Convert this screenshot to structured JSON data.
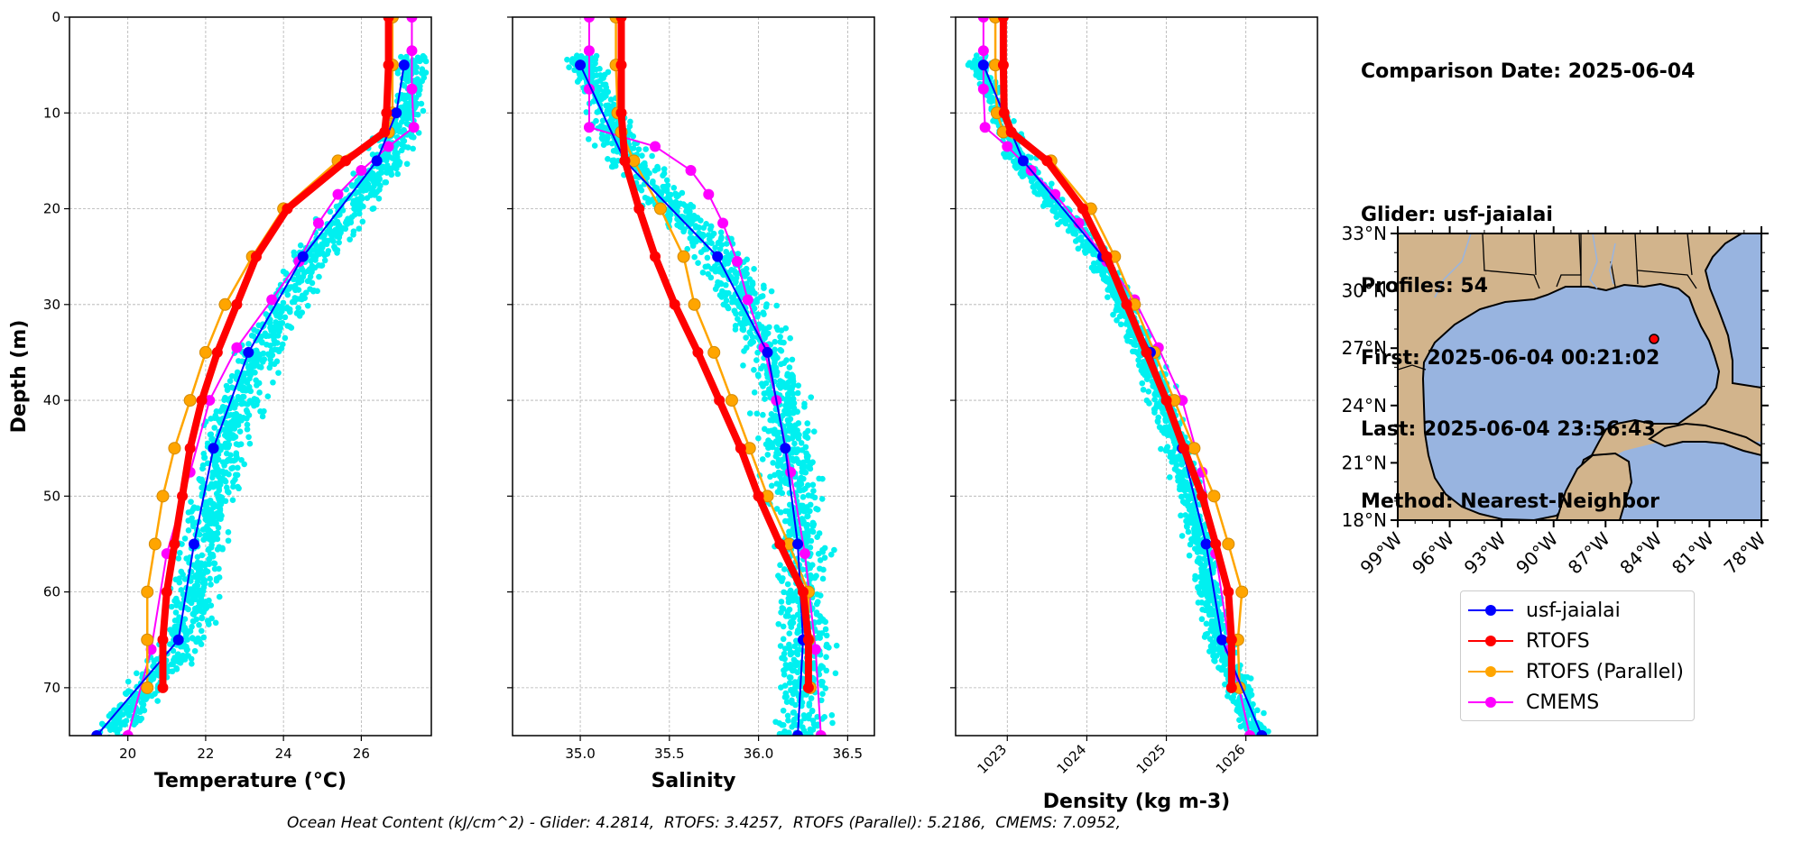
{
  "info": {
    "comparison_date": "Comparison Date: 2025-06-04",
    "glider": "Glider: usf-jaialai",
    "profiles": "Profiles: 54",
    "first": "First: 2025-06-04 00:21:02",
    "last": "Last: 2025-06-04 23:56:43",
    "method": "Method: Nearest-Neighbor"
  },
  "footnote": "Ocean Heat Content (kJ/cm^2) - Glider: 4.2814,  RTOFS: 3.4257,  RTOFS (Parallel): 5.2186,  CMEMS: 7.0952,",
  "legend": [
    {
      "label": "usf-jaialai",
      "color": "#0000ff"
    },
    {
      "label": "RTOFS",
      "color": "#ff0000"
    },
    {
      "label": "RTOFS (Parallel)",
      "color": "#ffa500"
    },
    {
      "label": "CMEMS",
      "color": "#ff00ff"
    }
  ],
  "colors": {
    "glider": "#0000ff",
    "rtofs": "#ff0000",
    "rtofs_parallel": "#ffa500",
    "cmems": "#ff00ff",
    "scatter": "#00f0f0",
    "land": "#d2b48c",
    "water": "#98b4e0"
  },
  "chart_data": [
    {
      "type": "line",
      "xlabel": "Temperature (°C)",
      "ylabel": "Depth (m)",
      "xlim": [
        18.5,
        27.8
      ],
      "ylim": [
        75,
        0
      ],
      "xticks": [
        20,
        22,
        24,
        26
      ],
      "yticks": [
        0,
        10,
        20,
        30,
        40,
        50,
        60,
        70
      ],
      "grid": true,
      "series": [
        {
          "name": "usf-jaialai",
          "depth": [
            5,
            10,
            15,
            25,
            35,
            45,
            55,
            65,
            75
          ],
          "values": [
            27.1,
            26.9,
            26.4,
            24.5,
            23.1,
            22.2,
            21.7,
            21.3,
            19.2
          ]
        },
        {
          "name": "RTOFS",
          "depth": [
            0,
            5,
            10,
            12,
            15,
            20,
            25,
            30,
            35,
            40,
            45,
            50,
            55,
            60,
            65,
            70
          ],
          "values": [
            26.7,
            26.7,
            26.65,
            26.6,
            25.6,
            24.1,
            23.3,
            22.8,
            22.3,
            21.9,
            21.6,
            21.4,
            21.2,
            21.0,
            20.9,
            20.9
          ]
        },
        {
          "name": "RTOFS (Parallel)",
          "depth": [
            0,
            5,
            10,
            12,
            15,
            20,
            25,
            30,
            35,
            40,
            45,
            50,
            55,
            60,
            65,
            70
          ],
          "values": [
            26.8,
            26.8,
            26.8,
            26.7,
            25.4,
            24.0,
            23.2,
            22.5,
            22.0,
            21.6,
            21.2,
            20.9,
            20.7,
            20.5,
            20.5,
            20.5
          ]
        },
        {
          "name": "CMEMS",
          "depth": [
            0,
            3.5,
            7.5,
            11.5,
            13.5,
            16,
            18.5,
            21.5,
            25.5,
            29.5,
            34.5,
            40,
            47.5,
            56,
            66,
            75
          ],
          "values": [
            27.3,
            27.3,
            27.3,
            27.35,
            26.7,
            26.0,
            25.4,
            24.9,
            24.4,
            23.7,
            22.8,
            22.1,
            21.6,
            21.0,
            20.6,
            20.0
          ]
        }
      ]
    },
    {
      "type": "line",
      "xlabel": "Salinity",
      "ylim": [
        75,
        0
      ],
      "xlim": [
        34.62,
        36.65
      ],
      "xticks": [
        35.0,
        35.5,
        36.0,
        36.5
      ],
      "grid": true,
      "series": [
        {
          "name": "usf-jaialai",
          "depth": [
            5,
            15,
            25,
            35,
            45,
            55,
            65,
            75
          ],
          "values": [
            35.0,
            35.25,
            35.77,
            36.05,
            36.15,
            36.22,
            36.25,
            36.22
          ]
        },
        {
          "name": "RTOFS",
          "depth": [
            0,
            5,
            10,
            15,
            20,
            25,
            30,
            35,
            40,
            45,
            50,
            55,
            60,
            65,
            70
          ],
          "values": [
            35.23,
            35.23,
            35.23,
            35.25,
            35.33,
            35.42,
            35.53,
            35.66,
            35.78,
            35.9,
            36.0,
            36.12,
            36.25,
            36.28,
            36.28
          ]
        },
        {
          "name": "RTOFS (Parallel)",
          "depth": [
            0,
            5,
            10,
            12,
            15,
            20,
            25,
            30,
            35,
            40,
            45,
            50,
            55,
            60,
            65,
            70
          ],
          "values": [
            35.2,
            35.2,
            35.21,
            35.23,
            35.3,
            35.45,
            35.58,
            35.64,
            35.75,
            35.85,
            35.95,
            36.05,
            36.17,
            36.28,
            36.28,
            36.29
          ]
        },
        {
          "name": "CMEMS",
          "depth": [
            0,
            3.5,
            7.5,
            11.5,
            13.5,
            16,
            18.5,
            21.5,
            25.5,
            29.5,
            34.5,
            40,
            47.5,
            56,
            66,
            75
          ],
          "values": [
            35.05,
            35.05,
            35.05,
            35.05,
            35.42,
            35.62,
            35.72,
            35.8,
            35.88,
            35.94,
            36.03,
            36.1,
            36.18,
            36.26,
            36.32,
            36.35
          ]
        }
      ]
    },
    {
      "type": "line",
      "xlabel": "Density (kg m-3)",
      "ylim": [
        75,
        0
      ],
      "xlim": [
        1022.35,
        1026.9
      ],
      "xticks": [
        1023,
        1024,
        1025,
        1026
      ],
      "grid": true,
      "series": [
        {
          "name": "usf-jaialai",
          "depth": [
            5,
            15,
            25,
            35,
            45,
            55,
            65,
            75
          ],
          "values": [
            1022.7,
            1023.2,
            1024.2,
            1024.8,
            1025.2,
            1025.5,
            1025.7,
            1026.2
          ]
        },
        {
          "name": "RTOFS",
          "depth": [
            0,
            5,
            10,
            12,
            15,
            20,
            25,
            30,
            35,
            40,
            45,
            50,
            55,
            60,
            65,
            70
          ],
          "values": [
            1022.95,
            1022.95,
            1022.96,
            1023.05,
            1023.5,
            1023.95,
            1024.25,
            1024.5,
            1024.75,
            1025.0,
            1025.22,
            1025.45,
            1025.62,
            1025.78,
            1025.82,
            1025.82
          ]
        },
        {
          "name": "RTOFS (Parallel)",
          "depth": [
            0,
            5,
            10,
            12,
            15,
            20,
            25,
            30,
            35,
            40,
            45,
            50,
            55,
            60,
            65,
            70
          ],
          "values": [
            1022.85,
            1022.85,
            1022.87,
            1022.95,
            1023.55,
            1024.05,
            1024.35,
            1024.6,
            1024.85,
            1025.1,
            1025.35,
            1025.6,
            1025.78,
            1025.95,
            1025.9,
            1025.92
          ]
        },
        {
          "name": "CMEMS",
          "depth": [
            0,
            3.5,
            7.5,
            11.5,
            13.5,
            16,
            18.5,
            21.5,
            25.5,
            29.5,
            34.5,
            40,
            47.5,
            56,
            66,
            75
          ],
          "values": [
            1022.7,
            1022.7,
            1022.7,
            1022.72,
            1023.0,
            1023.3,
            1023.6,
            1023.9,
            1024.25,
            1024.6,
            1024.9,
            1025.2,
            1025.45,
            1025.62,
            1025.8,
            1026.05
          ]
        }
      ]
    },
    {
      "type": "map",
      "lat_ticks": [
        "33°N",
        "30°N",
        "27°N",
        "24°N",
        "21°N",
        "18°N"
      ],
      "lon_ticks": [
        "99°W",
        "96°W",
        "93°W",
        "90°W",
        "87°W",
        "84°W",
        "81°W",
        "78°W"
      ],
      "extent": {
        "lon": [
          -99,
          -78
        ],
        "lat": [
          18,
          33
        ]
      },
      "marker": {
        "lon": -84.1,
        "lat": 27.7,
        "label": "glider position"
      }
    }
  ]
}
